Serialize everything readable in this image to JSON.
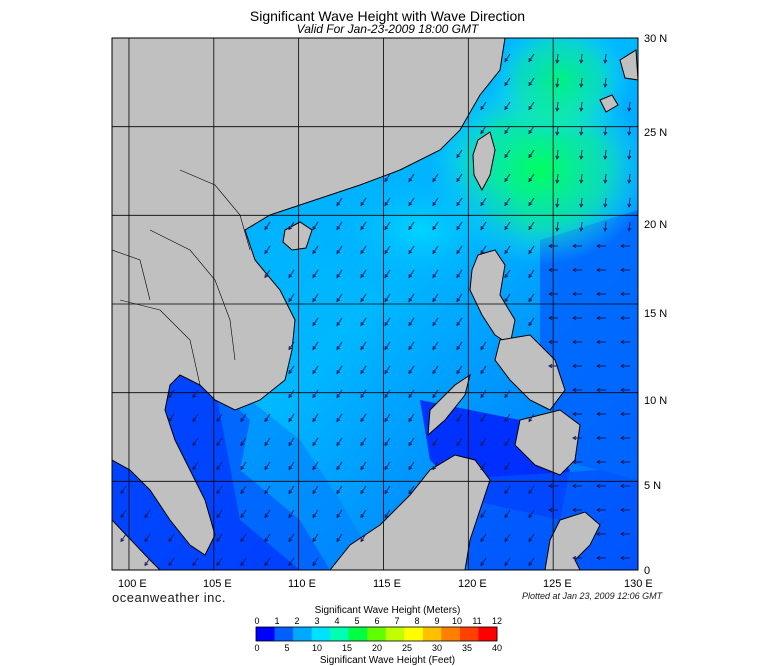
{
  "header": {
    "title": "Significant Wave Height with Wave Direction",
    "subtitle": "Valid For Jan-23-2009 18:00 GMT"
  },
  "map": {
    "lon_labels": [
      "100 E",
      "105 E",
      "110 E",
      "115 E",
      "120 E",
      "125 E",
      "130 E"
    ],
    "lat_labels": [
      "0",
      "5 N",
      "10 N",
      "15 N",
      "20 N",
      "25 N",
      "30 N"
    ],
    "lon_range": [
      99,
      130
    ],
    "lat_range": [
      0,
      30
    ],
    "land_color": "#c0c0c0",
    "wave_color_low": "#0000ff",
    "wave_color_mid": "#00d8ff",
    "wave_color_high": "#00ff60"
  },
  "footer": {
    "brand": "oceanweather inc.",
    "plotted": "Plotted at Jan 23, 2009 12:06 GMT"
  },
  "colorbar": {
    "title_meters": "Significant Wave Height (Meters)",
    "title_feet": "Significant Wave Height (Feet)",
    "meter_ticks": [
      "0",
      "1",
      "2",
      "3",
      "4",
      "5",
      "6",
      "7",
      "8",
      "9",
      "10",
      "11",
      "12"
    ],
    "feet_ticks": [
      "0",
      "5",
      "10",
      "15",
      "20",
      "25",
      "30",
      "35",
      "40"
    ],
    "colors": [
      "#0000ff",
      "#0060ff",
      "#00a8ff",
      "#00e0ff",
      "#00ffb0",
      "#00ff40",
      "#60ff00",
      "#c0ff00",
      "#ffff00",
      "#ffc000",
      "#ff8000",
      "#ff4000",
      "#ff0000"
    ]
  }
}
